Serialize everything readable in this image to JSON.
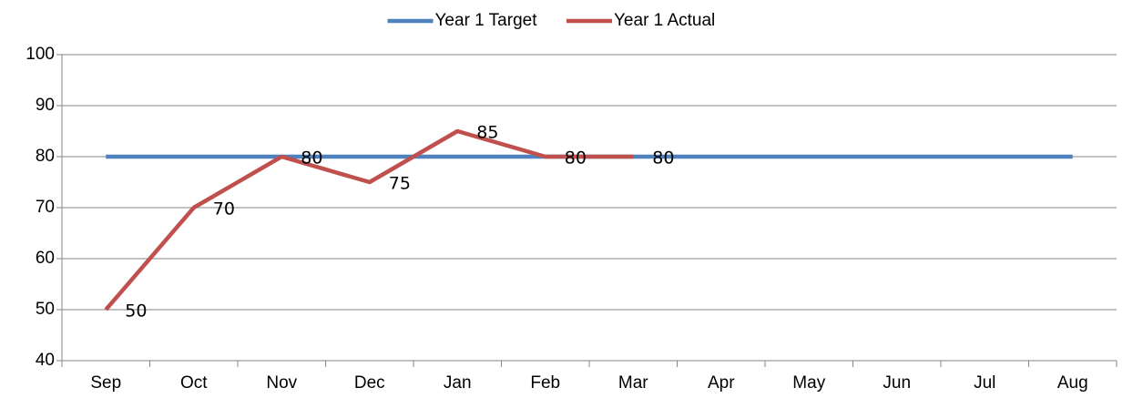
{
  "chart_data": {
    "type": "line",
    "categories": [
      "Sep",
      "Oct",
      "Nov",
      "Dec",
      "Jan",
      "Feb",
      "Mar",
      "Apr",
      "May",
      "Jun",
      "Jul",
      "Aug"
    ],
    "series": [
      {
        "name": "Year 1 Target",
        "color": "#4f81bd",
        "values": [
          80,
          80,
          80,
          80,
          80,
          80,
          80,
          80,
          80,
          80,
          80,
          80
        ]
      },
      {
        "name": "Year 1 Actual",
        "color": "#c0504d",
        "values": [
          50,
          70,
          80,
          75,
          85,
          80,
          80,
          null,
          null,
          null,
          null,
          null
        ],
        "data_labels": true
      }
    ],
    "ylim": [
      40,
      100
    ],
    "yticks": [
      40,
      50,
      60,
      70,
      80,
      90,
      100
    ],
    "grid": true,
    "legend": "top"
  }
}
